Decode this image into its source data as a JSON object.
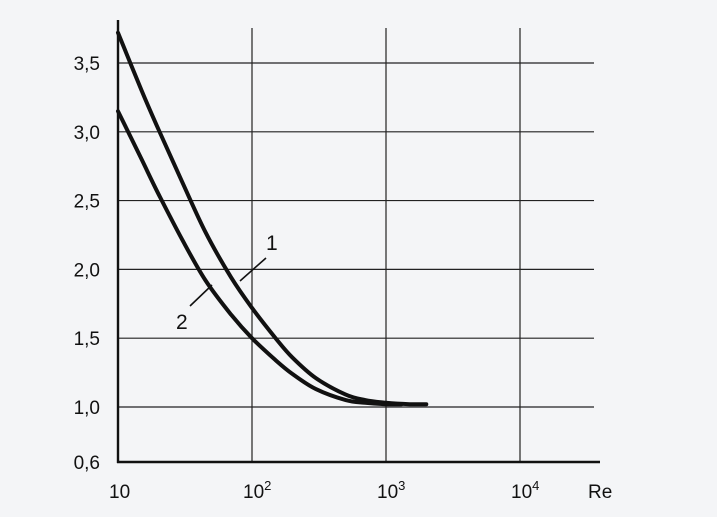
{
  "chart_data": {
    "type": "line",
    "title": "",
    "xlabel": "Re",
    "ylabel": "",
    "x_scale": "log",
    "xlim": [
      10,
      30000
    ],
    "ylim": [
      0.6,
      3.75
    ],
    "grid": true,
    "x_ticks": [
      {
        "value": 10,
        "base": "10",
        "exp": ""
      },
      {
        "value": 100,
        "base": "10",
        "exp": "2"
      },
      {
        "value": 1000,
        "base": "10",
        "exp": "3"
      },
      {
        "value": 10000,
        "base": "10",
        "exp": "4"
      }
    ],
    "y_ticks": [
      {
        "value": 0.6,
        "label": "0,6"
      },
      {
        "value": 1.0,
        "label": "1,0"
      },
      {
        "value": 1.5,
        "label": "1,5"
      },
      {
        "value": 2.0,
        "label": "2,0"
      },
      {
        "value": 2.5,
        "label": "2,5"
      },
      {
        "value": 3.0,
        "label": "3,0"
      },
      {
        "value": 3.5,
        "label": "3,5"
      }
    ],
    "series": [
      {
        "name": "1",
        "x": [
          10,
          15,
          20,
          30,
          45,
          70,
          100,
          150,
          200,
          300,
          500,
          700,
          1000,
          1500,
          2000
        ],
        "y": [
          3.72,
          3.3,
          3.02,
          2.64,
          2.27,
          1.94,
          1.72,
          1.5,
          1.36,
          1.21,
          1.09,
          1.05,
          1.03,
          1.02,
          1.02
        ]
      },
      {
        "name": "2",
        "x": [
          10,
          15,
          20,
          30,
          45,
          70,
          100,
          150,
          200,
          300,
          500,
          700,
          1000,
          1300
        ],
        "y": [
          3.15,
          2.8,
          2.55,
          2.22,
          1.92,
          1.67,
          1.5,
          1.34,
          1.24,
          1.13,
          1.05,
          1.03,
          1.02,
          1.02
        ]
      }
    ]
  }
}
